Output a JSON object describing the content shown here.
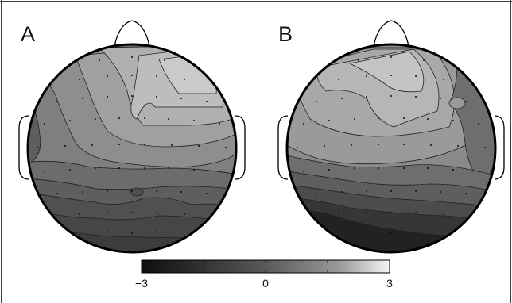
{
  "panels": [
    {
      "id": "A",
      "label": "A"
    },
    {
      "id": "B",
      "label": "B"
    }
  ],
  "colorbar": {
    "min": -3,
    "max": 3,
    "ticks": [
      {
        "value": -3,
        "label": "−3"
      },
      {
        "value": 0,
        "label": "0"
      },
      {
        "value": 3,
        "label": "3"
      }
    ],
    "colors": [
      "#0d0d0d",
      "#5a5a5a",
      "#9a9a9a",
      "#f5f5f5"
    ]
  }
}
